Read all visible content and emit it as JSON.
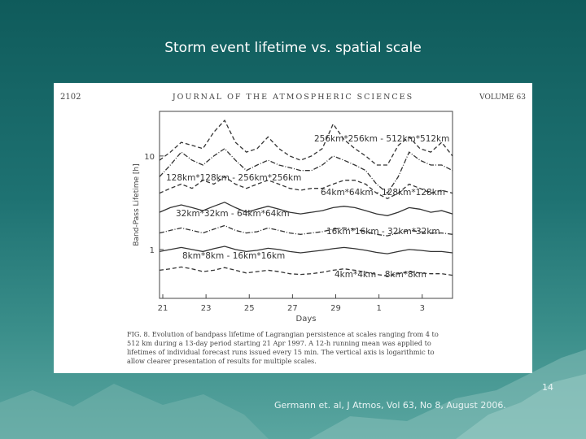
{
  "slide": {
    "title": "Storm event lifetime vs. spatial scale",
    "page_number": "14",
    "citation": "Germann et. al, J Atmos, Vol 63, No 8, August 2006."
  },
  "journal": {
    "page": "2102",
    "name": "JOURNAL OF THE ATMOSPHERIC SCIENCES",
    "volume": "VOLUME 63"
  },
  "caption": {
    "lines": [
      "FIG. 8. Evolution of bandpass lifetime of Lagrangian persistence at scales ranging from 4 to",
      "512 km during a 13-day period starting 21 Apr 1997. A 12-h running mean was applied to",
      "lifetimes of individual forecast runs issued every 15 min. The vertical axis is logarithmic to",
      "allow clearer presentation of results for multiple scales."
    ]
  },
  "colors": {
    "background": "#1e7272",
    "figure_bg": "#ffffff",
    "ink": "#333333"
  },
  "chart_data": {
    "type": "line",
    "ylabel": "Band-Pass Lifetime [h]",
    "xlabel": "Days",
    "yscale": "log",
    "ylim": [
      0.3,
      30
    ],
    "xlim": [
      21,
      4
    ],
    "x_ticks": [
      "21",
      "23",
      "25",
      "27",
      "29",
      "1",
      "3"
    ],
    "y_ticks": [
      "1",
      "10"
    ],
    "grid": false,
    "series": [
      {
        "name": "256km*256km - 512km*512km",
        "style": "dash",
        "values": [
          9,
          11,
          14,
          13,
          12,
          18,
          24,
          14,
          11,
          12,
          16,
          12,
          10,
          9,
          10,
          12,
          22,
          15,
          12,
          10,
          8,
          8,
          13,
          16,
          12,
          11,
          14,
          10
        ]
      },
      {
        "name": "128km*128km - 256km*256km",
        "style": "dashdot",
        "values": [
          6,
          8,
          11,
          9,
          8,
          10,
          12,
          9,
          7,
          8,
          9,
          8,
          7.5,
          7,
          7,
          8,
          10,
          9,
          8,
          7,
          5,
          4,
          6,
          11,
          9,
          8,
          8,
          7
        ]
      },
      {
        "name": "64km*64km - 128km*128km",
        "style": "dash",
        "values": [
          4,
          4.5,
          5,
          4.5,
          5.5,
          5,
          6,
          5,
          4.5,
          5,
          5.5,
          5,
          4.5,
          4.3,
          4.5,
          4.5,
          5,
          5.5,
          5.5,
          5,
          4,
          3.5,
          4,
          5,
          4.5,
          4,
          4.3,
          4
        ]
      },
      {
        "name": "32km*32km - 64km*64km",
        "style": "solid",
        "values": [
          2.5,
          2.8,
          3,
          2.8,
          2.6,
          2.9,
          3.2,
          2.8,
          2.5,
          2.7,
          2.9,
          2.7,
          2.5,
          2.4,
          2.5,
          2.6,
          2.8,
          2.9,
          2.8,
          2.6,
          2.4,
          2.3,
          2.5,
          2.8,
          2.7,
          2.5,
          2.6,
          2.4
        ]
      },
      {
        "name": "16km*16km - 32km*32km",
        "style": "dashdot",
        "values": [
          1.5,
          1.6,
          1.7,
          1.6,
          1.5,
          1.65,
          1.8,
          1.6,
          1.5,
          1.55,
          1.7,
          1.6,
          1.5,
          1.45,
          1.5,
          1.55,
          1.65,
          1.7,
          1.65,
          1.55,
          1.45,
          1.4,
          1.5,
          1.6,
          1.55,
          1.5,
          1.5,
          1.45
        ]
      },
      {
        "name": "8km*8km - 16km*16km",
        "style": "solid",
        "values": [
          0.95,
          1.0,
          1.05,
          1.0,
          0.95,
          1.02,
          1.08,
          1.0,
          0.95,
          0.98,
          1.03,
          1.0,
          0.95,
          0.92,
          0.95,
          0.98,
          1.02,
          1.05,
          1.02,
          0.98,
          0.93,
          0.9,
          0.95,
          1.0,
          0.98,
          0.95,
          0.95,
          0.92
        ]
      },
      {
        "name": "4km*4km - 8km*8km",
        "style": "dash",
        "values": [
          0.6,
          0.62,
          0.65,
          0.62,
          0.58,
          0.6,
          0.64,
          0.6,
          0.56,
          0.58,
          0.6,
          0.58,
          0.55,
          0.54,
          0.55,
          0.57,
          0.6,
          0.62,
          0.6,
          0.57,
          0.54,
          0.52,
          0.55,
          0.58,
          0.56,
          0.55,
          0.55,
          0.53
        ]
      }
    ]
  }
}
